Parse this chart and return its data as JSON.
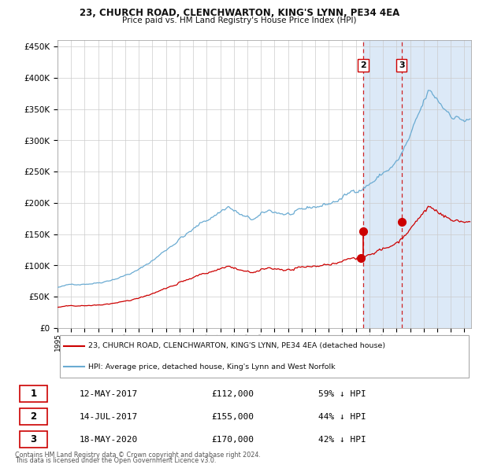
{
  "title1": "23, CHURCH ROAD, CLENCHWARTON, KING'S LYNN, PE34 4EA",
  "title2": "Price paid vs. HM Land Registry's House Price Index (HPI)",
  "legend_line1": "23, CHURCH ROAD, CLENCHWARTON, KING'S LYNN, PE34 4EA (detached house)",
  "legend_line2": "HPI: Average price, detached house, King's Lynn and West Norfolk",
  "footer1": "Contains HM Land Registry data © Crown copyright and database right 2024.",
  "footer2": "This data is licensed under the Open Government Licence v3.0.",
  "transactions": [
    {
      "num": 1,
      "date": "12-MAY-2017",
      "price": 112000,
      "pct": "59% ↓ HPI",
      "date_dec": 2017.362
    },
    {
      "num": 2,
      "date": "14-JUL-2017",
      "price": 155000,
      "pct": "44% ↓ HPI",
      "date_dec": 2017.535
    },
    {
      "num": 3,
      "date": "18-MAY-2020",
      "price": 170000,
      "pct": "42% ↓ HPI",
      "date_dec": 2020.379
    }
  ],
  "hpi_color": "#6aabd2",
  "price_color": "#cc0000",
  "shade_color": "#dce9f7",
  "plot_bg": "#ffffff",
  "vline_color": "#cc0000",
  "grid_color": "#cccccc",
  "ylim": [
    0,
    460000
  ],
  "xlim_start": 1995.0,
  "xlim_end": 2025.5
}
